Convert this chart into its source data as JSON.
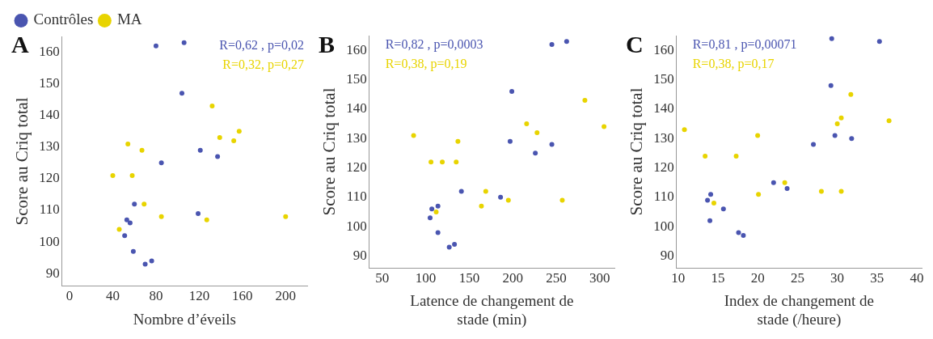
{
  "chart_data": [
    {
      "type": "scatter",
      "title": "A",
      "xlabel": "Nombre d’éveils",
      "ylabel": "Score au Criq total",
      "xlim": [
        -7,
        220
      ],
      "xticks": [
        0,
        40,
        80,
        120,
        160,
        200
      ],
      "ylim": [
        86,
        165
      ],
      "yticks": [
        90,
        100,
        110,
        120,
        130,
        140,
        150,
        160
      ],
      "grid": false,
      "legend": "top left",
      "marker": "circle",
      "annotations": [
        "R=0,62 , p=0,02",
        "R=0,32, p=0,27"
      ],
      "series": [
        {
          "name": "Contrôles",
          "color": "#4a55b0",
          "x": [
            80,
            106,
            104,
            121,
            137,
            85,
            60,
            119,
            53,
            56,
            51,
            59,
            76,
            70
          ],
          "values": [
            162,
            163,
            147,
            129,
            127,
            125,
            112,
            109,
            107,
            106,
            102,
            97,
            94,
            93
          ]
        },
        {
          "name": "MA",
          "color": "#e8d400",
          "x": [
            40,
            46,
            54,
            58,
            67,
            69,
            85,
            132,
            127,
            139,
            152,
            157,
            200
          ],
          "values": [
            121,
            104,
            131,
            121,
            129,
            112,
            108,
            143,
            107,
            133,
            132,
            135,
            108
          ]
        }
      ]
    },
    {
      "type": "scatter",
      "title": "B",
      "xlabel": "Latence de changement de stade (min)",
      "ylabel": "Score au Criq total",
      "xlim": [
        35,
        317
      ],
      "xticks": [
        50,
        100,
        150,
        200,
        250,
        300
      ],
      "ylim": [
        86,
        165
      ],
      "yticks": [
        90,
        100,
        110,
        120,
        130,
        140,
        150,
        160
      ],
      "grid": false,
      "marker": "circle",
      "annotations": [
        "R=0,82 , p=0,0003",
        "R=0,38, p=0,19"
      ],
      "series": [
        {
          "color": "#4a55b0",
          "x": [
            245,
            262,
            199,
            197,
            245,
            226,
            141,
            186,
            107,
            114,
            105,
            114,
            133,
            127
          ],
          "values": [
            162,
            163,
            146,
            129,
            128,
            125,
            112,
            110,
            106,
            107,
            103,
            98,
            94,
            93
          ]
        },
        {
          "color": "#e8d400",
          "x": [
            86,
            106,
            119,
            135,
            137,
            112,
            164,
            169,
            195,
            216,
            228,
            257,
            283,
            305
          ],
          "values": [
            131,
            122,
            122,
            122,
            129,
            105,
            107,
            112,
            109,
            135,
            132,
            109,
            143,
            134
          ]
        }
      ]
    },
    {
      "type": "scatter",
      "title": "C",
      "xlabel": "Index de changement de stade (/heure)",
      "ylabel": "Score au Criq total",
      "xlim": [
        9.8,
        40.6
      ],
      "xticks": [
        10,
        15,
        20,
        25,
        30,
        35,
        40
      ],
      "ylim": [
        86,
        165
      ],
      "yticks": [
        90,
        100,
        110,
        120,
        130,
        140,
        150,
        160
      ],
      "grid": false,
      "marker": "circle",
      "annotations": [
        "R=0,81 , p=0,00071",
        "R=0,38, p=0,17"
      ],
      "series": [
        {
          "color": "#4a55b0",
          "x": [
            29.3,
            35.3,
            29.2,
            29.7,
            31.8,
            27,
            22,
            23.7,
            13.7,
            14.1,
            15.7,
            14,
            17.6,
            18.2
          ],
          "values": [
            164,
            163,
            148,
            131,
            130,
            128,
            115,
            113,
            109,
            111,
            106,
            102,
            98,
            97
          ]
        },
        {
          "color": "#e8d400",
          "x": [
            10.8,
            13.4,
            14.5,
            17.3,
            20,
            20.1,
            23.4,
            28,
            30.5,
            30,
            30.5,
            31.7,
            36.5
          ],
          "values": [
            133,
            124,
            108,
            124,
            131,
            111,
            115,
            112,
            112,
            135,
            137,
            145,
            136
          ]
        }
      ]
    }
  ]
}
